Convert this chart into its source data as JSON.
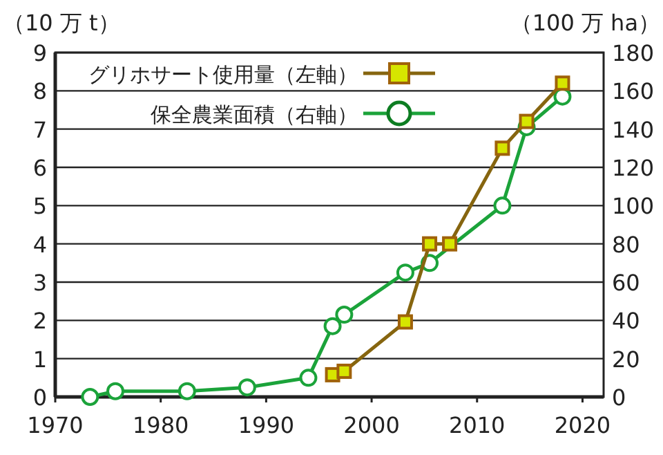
{
  "chart_data": {
    "type": "line",
    "ylabel": "（10 万 t）",
    "y2label": "（100 万 ha）",
    "xlim": [
      1970,
      2022
    ],
    "xticks": [
      1970,
      1980,
      1990,
      2000,
      2010,
      2020
    ],
    "ylim": [
      0,
      9
    ],
    "yticks": [
      0,
      1,
      2,
      3,
      4,
      5,
      6,
      7,
      8,
      9
    ],
    "y2lim": [
      0,
      180
    ],
    "y2ticks": [
      0,
      20,
      40,
      60,
      80,
      100,
      120,
      140,
      160,
      180
    ],
    "grid": "y",
    "legend": "top left",
    "series": [
      {
        "name": "グリホサート使用量（左軸）",
        "color": "#86650f",
        "marker": "square",
        "x": [
          1996.3,
          1997.4,
          2003.2,
          2005.5,
          2007.4,
          2012.4,
          2014.7,
          2018.1
        ],
        "values": [
          0.58,
          0.67,
          1.96,
          4.0,
          4.0,
          6.5,
          7.2,
          8.2
        ]
      },
      {
        "name": "保全農業面積（右軸）",
        "color": "#1ba33a",
        "marker": "circle",
        "axis": "y2",
        "x": [
          1973.3,
          1975.7,
          1982.5,
          1988.2,
          1994.0,
          1996.3,
          1997.4,
          2003.2,
          2005.5,
          2012.4,
          2014.7,
          2018.1
        ],
        "values": [
          0,
          3,
          3,
          5,
          10,
          37,
          43,
          65,
          70,
          100,
          141,
          157
        ]
      }
    ]
  }
}
